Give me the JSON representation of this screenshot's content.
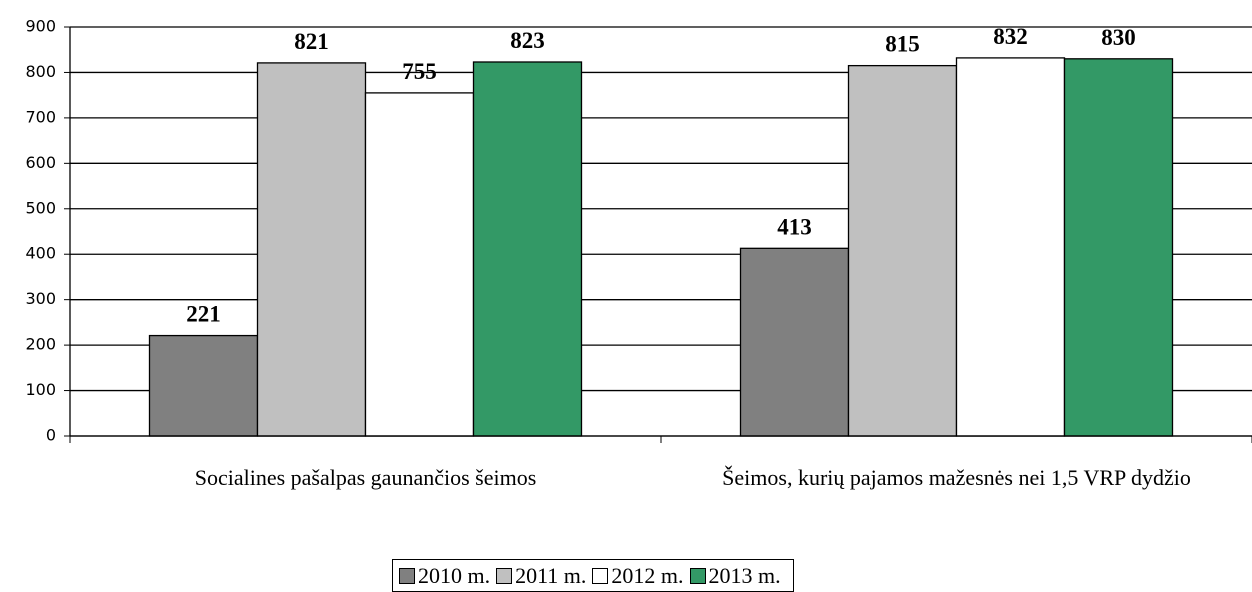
{
  "chart_data": {
    "type": "bar",
    "categories": [
      "Socialines pašalpas gaunančios šeimos",
      "Šeimos, kurių pajamos mažesnės nei 1,5 VRP dydžio"
    ],
    "series": [
      {
        "name": "2010 m.",
        "color": "#808080",
        "values": [
          221,
          413
        ]
      },
      {
        "name": "2011 m.",
        "color": "#c0c0c0",
        "values": [
          821,
          815
        ]
      },
      {
        "name": "2012 m.",
        "color": "#ffffff",
        "values": [
          755,
          832
        ]
      },
      {
        "name": "2013 m.",
        "color": "#339966",
        "values": [
          823,
          830
        ]
      }
    ],
    "ylim": [
      0,
      900
    ],
    "yticks": [
      0,
      100,
      200,
      300,
      400,
      500,
      600,
      700,
      800,
      900
    ],
    "grid": true,
    "legend": "bottom"
  }
}
